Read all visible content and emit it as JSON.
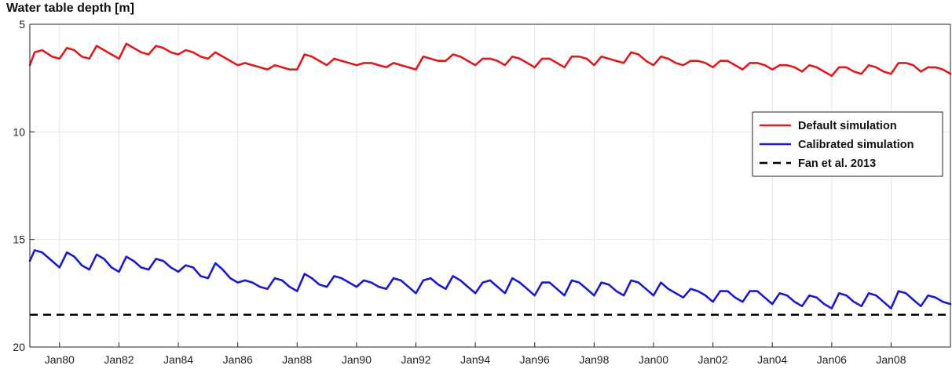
{
  "chart_data": {
    "type": "line",
    "title": "Water table depth [m]",
    "xlabel": "",
    "ylabel": "",
    "y_reversed": true,
    "ylim": [
      5,
      20
    ],
    "yticks": [
      5,
      10,
      15,
      20
    ],
    "xlim": [
      "1979-01-01",
      "2009-12-31"
    ],
    "xticks": [
      "1980-01-01",
      "1982-01-01",
      "1984-01-01",
      "1986-01-01",
      "1988-01-01",
      "1990-01-01",
      "1992-01-01",
      "1994-01-01",
      "1996-01-01",
      "1998-01-01",
      "2000-01-01",
      "2002-01-01",
      "2004-01-01",
      "2006-01-01",
      "2008-01-01"
    ],
    "xticklabels": [
      "Jan80",
      "Jan82",
      "Jan84",
      "Jan86",
      "Jan88",
      "Jan90",
      "Jan92",
      "Jan94",
      "Jan96",
      "Jan98",
      "Jan00",
      "Jan02",
      "Jan04",
      "Jan06",
      "Jan08"
    ],
    "grid": true,
    "legend_position": "right",
    "series": [
      {
        "name": "Default simulation",
        "color": "#e0191c",
        "style": "solid",
        "x": [
          "1979-01-01",
          "1979-03-01",
          "1979-06-01",
          "1979-10-01",
          "1980-01-01",
          "1980-04-01",
          "1980-07-01",
          "1980-10-01",
          "1981-01-01",
          "1981-04-01",
          "1981-07-01",
          "1981-10-01",
          "1982-01-01",
          "1982-04-01",
          "1982-07-01",
          "1982-10-01",
          "1983-01-01",
          "1983-04-01",
          "1983-07-01",
          "1983-10-01",
          "1984-01-01",
          "1984-04-01",
          "1984-07-01",
          "1984-10-01",
          "1985-01-01",
          "1985-04-01",
          "1985-07-01",
          "1985-10-01",
          "1986-01-01",
          "1986-04-01",
          "1986-07-01",
          "1986-10-01",
          "1987-01-01",
          "1987-04-01",
          "1987-07-01",
          "1987-10-01",
          "1988-01-01",
          "1988-04-01",
          "1988-07-01",
          "1988-10-01",
          "1989-01-01",
          "1989-04-01",
          "1989-07-01",
          "1989-10-01",
          "1990-01-01",
          "1990-04-01",
          "1990-07-01",
          "1990-10-01",
          "1991-01-01",
          "1991-04-01",
          "1991-07-01",
          "1991-10-01",
          "1992-01-01",
          "1992-04-01",
          "1992-07-01",
          "1992-10-01",
          "1993-01-01",
          "1993-04-01",
          "1993-07-01",
          "1993-10-01",
          "1994-01-01",
          "1994-04-01",
          "1994-07-01",
          "1994-10-01",
          "1995-01-01",
          "1995-04-01",
          "1995-07-01",
          "1995-10-01",
          "1996-01-01",
          "1996-04-01",
          "1996-07-01",
          "1996-10-01",
          "1997-01-01",
          "1997-04-01",
          "1997-07-01",
          "1997-10-01",
          "1998-01-01",
          "1998-04-01",
          "1998-07-01",
          "1998-10-01",
          "1999-01-01",
          "1999-04-01",
          "1999-07-01",
          "1999-10-01",
          "2000-01-01",
          "2000-04-01",
          "2000-07-01",
          "2000-10-01",
          "2001-01-01",
          "2001-04-01",
          "2001-07-01",
          "2001-10-01",
          "2002-01-01",
          "2002-04-01",
          "2002-07-01",
          "2002-10-01",
          "2003-01-01",
          "2003-04-01",
          "2003-07-01",
          "2003-10-01",
          "2004-01-01",
          "2004-04-01",
          "2004-07-01",
          "2004-10-01",
          "2005-01-01",
          "2005-04-01",
          "2005-07-01",
          "2005-10-01",
          "2006-01-01",
          "2006-04-01",
          "2006-07-01",
          "2006-10-01",
          "2007-01-01",
          "2007-04-01",
          "2007-07-01",
          "2007-10-01",
          "2008-01-01",
          "2008-04-01",
          "2008-07-01",
          "2008-10-01",
          "2009-01-01",
          "2009-04-01",
          "2009-07-01",
          "2009-10-01",
          "2009-12-31"
        ],
        "y": [
          6.9,
          6.3,
          6.2,
          6.5,
          6.6,
          6.1,
          6.2,
          6.5,
          6.6,
          6.0,
          6.2,
          6.4,
          6.6,
          5.9,
          6.1,
          6.3,
          6.4,
          6.0,
          6.1,
          6.3,
          6.4,
          6.2,
          6.3,
          6.5,
          6.6,
          6.3,
          6.5,
          6.7,
          6.9,
          6.8,
          6.9,
          7.0,
          7.1,
          6.9,
          7.0,
          7.1,
          7.1,
          6.4,
          6.5,
          6.7,
          6.9,
          6.6,
          6.7,
          6.8,
          6.9,
          6.8,
          6.8,
          6.9,
          7.0,
          6.8,
          6.9,
          7.0,
          7.1,
          6.5,
          6.6,
          6.7,
          6.7,
          6.4,
          6.5,
          6.7,
          6.9,
          6.6,
          6.6,
          6.7,
          6.9,
          6.5,
          6.6,
          6.8,
          7.0,
          6.6,
          6.6,
          6.8,
          7.0,
          6.5,
          6.5,
          6.6,
          6.9,
          6.5,
          6.6,
          6.7,
          6.8,
          6.3,
          6.4,
          6.7,
          6.9,
          6.5,
          6.6,
          6.8,
          6.9,
          6.7,
          6.7,
          6.8,
          7.0,
          6.7,
          6.7,
          6.9,
          7.1,
          6.8,
          6.8,
          6.9,
          7.1,
          6.9,
          6.9,
          7.0,
          7.2,
          6.9,
          7.0,
          7.2,
          7.4,
          7.0,
          7.0,
          7.2,
          7.3,
          6.9,
          7.0,
          7.2,
          7.3,
          6.8,
          6.8,
          6.9,
          7.2,
          7.0,
          7.0,
          7.1,
          7.3
        ]
      },
      {
        "name": "Calibrated simulation",
        "color": "#1a1acd",
        "style": "solid",
        "x": [
          "1979-01-01",
          "1979-03-01",
          "1979-06-01",
          "1979-10-01",
          "1980-01-01",
          "1980-04-01",
          "1980-07-01",
          "1980-10-01",
          "1981-01-01",
          "1981-04-01",
          "1981-07-01",
          "1981-10-01",
          "1982-01-01",
          "1982-04-01",
          "1982-07-01",
          "1982-10-01",
          "1983-01-01",
          "1983-04-01",
          "1983-07-01",
          "1983-10-01",
          "1984-01-01",
          "1984-04-01",
          "1984-07-01",
          "1984-10-01",
          "1985-01-01",
          "1985-04-01",
          "1985-07-01",
          "1985-10-01",
          "1986-01-01",
          "1986-04-01",
          "1986-07-01",
          "1986-10-01",
          "1987-01-01",
          "1987-04-01",
          "1987-07-01",
          "1987-10-01",
          "1988-01-01",
          "1988-04-01",
          "1988-07-01",
          "1988-10-01",
          "1989-01-01",
          "1989-04-01",
          "1989-07-01",
          "1989-10-01",
          "1990-01-01",
          "1990-04-01",
          "1990-07-01",
          "1990-10-01",
          "1991-01-01",
          "1991-04-01",
          "1991-07-01",
          "1991-10-01",
          "1992-01-01",
          "1992-04-01",
          "1992-07-01",
          "1992-10-01",
          "1993-01-01",
          "1993-04-01",
          "1993-07-01",
          "1993-10-01",
          "1994-01-01",
          "1994-04-01",
          "1994-07-01",
          "1994-10-01",
          "1995-01-01",
          "1995-04-01",
          "1995-07-01",
          "1995-10-01",
          "1996-01-01",
          "1996-04-01",
          "1996-07-01",
          "1996-10-01",
          "1997-01-01",
          "1997-04-01",
          "1997-07-01",
          "1997-10-01",
          "1998-01-01",
          "1998-04-01",
          "1998-07-01",
          "1998-10-01",
          "1999-01-01",
          "1999-04-01",
          "1999-07-01",
          "1999-10-01",
          "2000-01-01",
          "2000-04-01",
          "2000-07-01",
          "2000-10-01",
          "2001-01-01",
          "2001-04-01",
          "2001-07-01",
          "2001-10-01",
          "2002-01-01",
          "2002-04-01",
          "2002-07-01",
          "2002-10-01",
          "2003-01-01",
          "2003-04-01",
          "2003-07-01",
          "2003-10-01",
          "2004-01-01",
          "2004-04-01",
          "2004-07-01",
          "2004-10-01",
          "2005-01-01",
          "2005-04-01",
          "2005-07-01",
          "2005-10-01",
          "2006-01-01",
          "2006-04-01",
          "2006-07-01",
          "2006-10-01",
          "2007-01-01",
          "2007-04-01",
          "2007-07-01",
          "2007-10-01",
          "2008-01-01",
          "2008-04-01",
          "2008-07-01",
          "2008-10-01",
          "2009-01-01",
          "2009-04-01",
          "2009-07-01",
          "2009-10-01",
          "2009-12-31"
        ],
        "y": [
          16.0,
          15.5,
          15.6,
          16.0,
          16.3,
          15.6,
          15.8,
          16.2,
          16.4,
          15.7,
          15.9,
          16.3,
          16.5,
          15.8,
          16.0,
          16.3,
          16.4,
          15.9,
          16.0,
          16.3,
          16.5,
          16.2,
          16.3,
          16.7,
          16.8,
          16.1,
          16.4,
          16.8,
          17.0,
          16.9,
          17.0,
          17.2,
          17.3,
          16.8,
          16.9,
          17.2,
          17.4,
          16.6,
          16.8,
          17.1,
          17.2,
          16.7,
          16.8,
          17.0,
          17.2,
          16.9,
          17.0,
          17.2,
          17.3,
          16.8,
          16.9,
          17.2,
          17.5,
          16.9,
          16.8,
          17.1,
          17.3,
          16.7,
          16.9,
          17.2,
          17.5,
          17.0,
          16.9,
          17.2,
          17.5,
          16.8,
          17.0,
          17.3,
          17.6,
          17.0,
          17.0,
          17.3,
          17.6,
          16.9,
          17.0,
          17.3,
          17.6,
          17.0,
          17.1,
          17.4,
          17.6,
          16.9,
          17.0,
          17.3,
          17.6,
          17.0,
          17.3,
          17.5,
          17.7,
          17.3,
          17.4,
          17.6,
          17.9,
          17.4,
          17.4,
          17.7,
          17.9,
          17.4,
          17.4,
          17.7,
          18.0,
          17.5,
          17.6,
          17.9,
          18.1,
          17.6,
          17.7,
          18.0,
          18.2,
          17.5,
          17.6,
          17.9,
          18.1,
          17.5,
          17.6,
          17.9,
          18.2,
          17.4,
          17.5,
          17.8,
          18.1,
          17.6,
          17.7,
          17.9,
          18.0
        ]
      },
      {
        "name": "Fan et al. 2013",
        "color": "#000000",
        "style": "dashed",
        "x": [
          "1979-01-01",
          "2009-12-31"
        ],
        "y": [
          18.5,
          18.5
        ]
      }
    ]
  }
}
